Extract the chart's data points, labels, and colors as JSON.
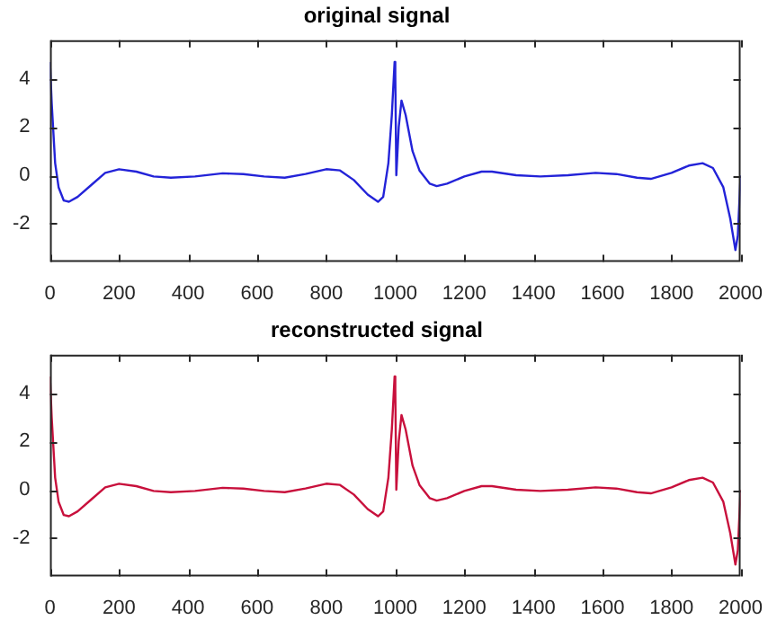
{
  "chart_data": [
    {
      "type": "line",
      "title": "original signal",
      "x": [
        0,
        5,
        15,
        25,
        40,
        55,
        80,
        120,
        160,
        200,
        250,
        300,
        350,
        420,
        500,
        560,
        620,
        680,
        740,
        800,
        840,
        880,
        920,
        950,
        965,
        980,
        990,
        998,
        1000,
        1003,
        1010,
        1018,
        1030,
        1050,
        1070,
        1100,
        1120,
        1150,
        1200,
        1250,
        1280,
        1350,
        1420,
        1500,
        1580,
        1640,
        1700,
        1740,
        1800,
        1850,
        1890,
        1920,
        1950,
        1970,
        1985,
        1992,
        2000
      ],
      "series": [
        {
          "color": "#2323d8",
          "values": [
            4.7,
            3,
            0.5,
            -0.5,
            -1.05,
            -1.1,
            -0.9,
            -0.4,
            0.1,
            0.25,
            0.15,
            -0.05,
            -0.1,
            -0.05,
            0.08,
            0.05,
            -0.05,
            -0.1,
            0.05,
            0.25,
            0.2,
            -0.2,
            -0.8,
            -1.1,
            -0.9,
            0.5,
            2.5,
            4.7,
            4.2,
            0,
            2.0,
            3.1,
            2.5,
            1.0,
            0.2,
            -0.35,
            -0.45,
            -0.35,
            -0.05,
            0.15,
            0.15,
            0.0,
            -0.05,
            0.0,
            0.1,
            0.05,
            -0.1,
            -0.15,
            0.1,
            0.4,
            0.5,
            0.3,
            -0.5,
            -1.8,
            -3.1,
            -2.5,
            0
          ]
        }
      ],
      "xlim": [
        0,
        2000
      ],
      "xticks": [
        0,
        200,
        400,
        600,
        800,
        1000,
        1200,
        1400,
        1600,
        1800,
        2000
      ],
      "ylim": [
        -3.6,
        5.6
      ],
      "yticks": [
        -2,
        0,
        2,
        4
      ]
    },
    {
      "type": "line",
      "title": "reconstructed signal",
      "x": [
        0,
        5,
        15,
        25,
        40,
        55,
        80,
        120,
        160,
        200,
        250,
        300,
        350,
        420,
        500,
        560,
        620,
        680,
        740,
        800,
        840,
        880,
        920,
        950,
        965,
        980,
        990,
        998,
        1000,
        1003,
        1010,
        1018,
        1030,
        1050,
        1070,
        1100,
        1120,
        1150,
        1200,
        1250,
        1280,
        1350,
        1420,
        1500,
        1580,
        1640,
        1700,
        1740,
        1800,
        1850,
        1890,
        1920,
        1950,
        1970,
        1985,
        1992,
        2000
      ],
      "series": [
        {
          "color": "#c8103c",
          "values": [
            4.7,
            3,
            0.5,
            -0.5,
            -1.05,
            -1.1,
            -0.9,
            -0.4,
            0.1,
            0.25,
            0.15,
            -0.05,
            -0.1,
            -0.05,
            0.08,
            0.05,
            -0.05,
            -0.1,
            0.05,
            0.25,
            0.2,
            -0.2,
            -0.8,
            -1.1,
            -0.9,
            0.5,
            2.5,
            4.7,
            4.2,
            0,
            2.0,
            3.1,
            2.5,
            1.0,
            0.2,
            -0.35,
            -0.45,
            -0.35,
            -0.05,
            0.15,
            0.15,
            0.0,
            -0.05,
            0.0,
            0.1,
            0.05,
            -0.1,
            -0.15,
            0.1,
            0.4,
            0.5,
            0.3,
            -0.5,
            -1.8,
            -3.1,
            -2.5,
            0
          ]
        }
      ],
      "xlim": [
        0,
        2000
      ],
      "xticks": [
        0,
        200,
        400,
        600,
        800,
        1000,
        1200,
        1400,
        1600,
        1800,
        2000
      ],
      "ylim": [
        -3.6,
        5.6
      ],
      "yticks": [
        -2,
        0,
        2,
        4
      ]
    }
  ]
}
